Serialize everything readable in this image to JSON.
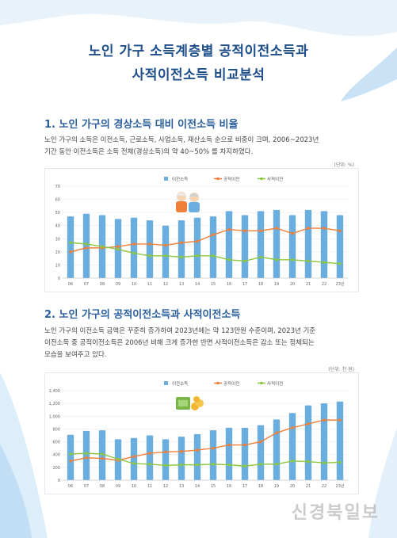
{
  "header": {
    "title_line1": "노인 가구 소득계층별 공적이전소득과",
    "title_line2": "사적이전소득 비교분석"
  },
  "section1": {
    "heading": "1. 노인 가구의 경상소득 대비 이전소득 비율",
    "text_line1": "노인 가구의 소득은 이전소득, 근로소득, 사업소득, 재산소득 순으로 비중이 크며, 2006~2023년",
    "text_line2": "기간 동안 이전소득은 소득 전체(경상소득)의 약 40~50% 를 차지하였다.",
    "unit": "(단위: %)"
  },
  "section2": {
    "heading": "2. 노인 가구의 공적이전소득과 사적이전소득",
    "text_line1": "노인 가구의 이전소득 금액은 꾸준히 증가하여 2023년에는 약 123만원 수준이며, 2023년 기준",
    "text_line2": "이전소득 중 공적이전소득은 2006년 비해 크게 증가한 반면 사적이전소득은 감소 또는 정체되는",
    "text_line3": "모습을 보여주고 있다.",
    "unit": "(단위: 천 원)"
  },
  "watermark": "신경북일보",
  "colors": {
    "bar": "#6aaee0",
    "public": "#f07f3a",
    "private": "#8cc63f",
    "title": "#1f4f8a",
    "heading": "#2a5f9e"
  },
  "chart_data": [
    {
      "type": "bar",
      "categories": [
        "06",
        "07",
        "08",
        "09",
        "10",
        "11",
        "12",
        "13",
        "14",
        "15",
        "16",
        "17",
        "18",
        "19",
        "20",
        "21",
        "22",
        "23년"
      ],
      "series": [
        {
          "name": "이전소득",
          "type": "bar",
          "values": [
            47,
            49,
            48,
            45,
            46,
            44,
            40,
            44,
            46,
            47,
            51,
            48,
            51,
            52,
            48,
            52,
            51,
            48
          ]
        },
        {
          "name": "공적이전",
          "type": "line",
          "values": [
            20,
            23,
            23,
            24,
            26,
            26,
            25,
            27,
            28,
            33,
            37,
            36,
            36,
            38,
            34,
            38,
            38,
            36
          ]
        },
        {
          "name": "사적이전",
          "type": "line",
          "values": [
            27,
            26,
            24,
            22,
            19,
            17,
            17,
            16,
            17,
            17,
            14,
            13,
            16,
            14,
            14,
            13,
            12,
            11
          ]
        }
      ],
      "ylim": [
        0,
        70
      ],
      "yticks": [
        0,
        10,
        20,
        30,
        40,
        50,
        60,
        70
      ],
      "legend": "top-center"
    },
    {
      "type": "bar",
      "categories": [
        "06",
        "07",
        "08",
        "09",
        "10",
        "11",
        "12",
        "13",
        "14",
        "15",
        "16",
        "17",
        "18",
        "19",
        "20",
        "21",
        "22",
        "23년"
      ],
      "series": [
        {
          "name": "이전소득",
          "type": "bar",
          "values": [
            710,
            770,
            780,
            640,
            660,
            700,
            640,
            680,
            720,
            780,
            820,
            820,
            860,
            950,
            1050,
            1170,
            1200,
            1230
          ]
        },
        {
          "name": "공적이전",
          "type": "line",
          "values": [
            300,
            350,
            340,
            310,
            370,
            420,
            440,
            450,
            470,
            500,
            550,
            550,
            600,
            740,
            820,
            880,
            940,
            940
          ]
        },
        {
          "name": "사적이전",
          "type": "line",
          "values": [
            410,
            420,
            410,
            330,
            260,
            250,
            230,
            240,
            240,
            250,
            240,
            220,
            250,
            250,
            300,
            290,
            270,
            280
          ]
        }
      ],
      "ylim": [
        0,
        1400
      ],
      "yticks": [
        0,
        200,
        400,
        600,
        800,
        1000,
        1200,
        1400
      ],
      "legend": "top-center"
    }
  ]
}
